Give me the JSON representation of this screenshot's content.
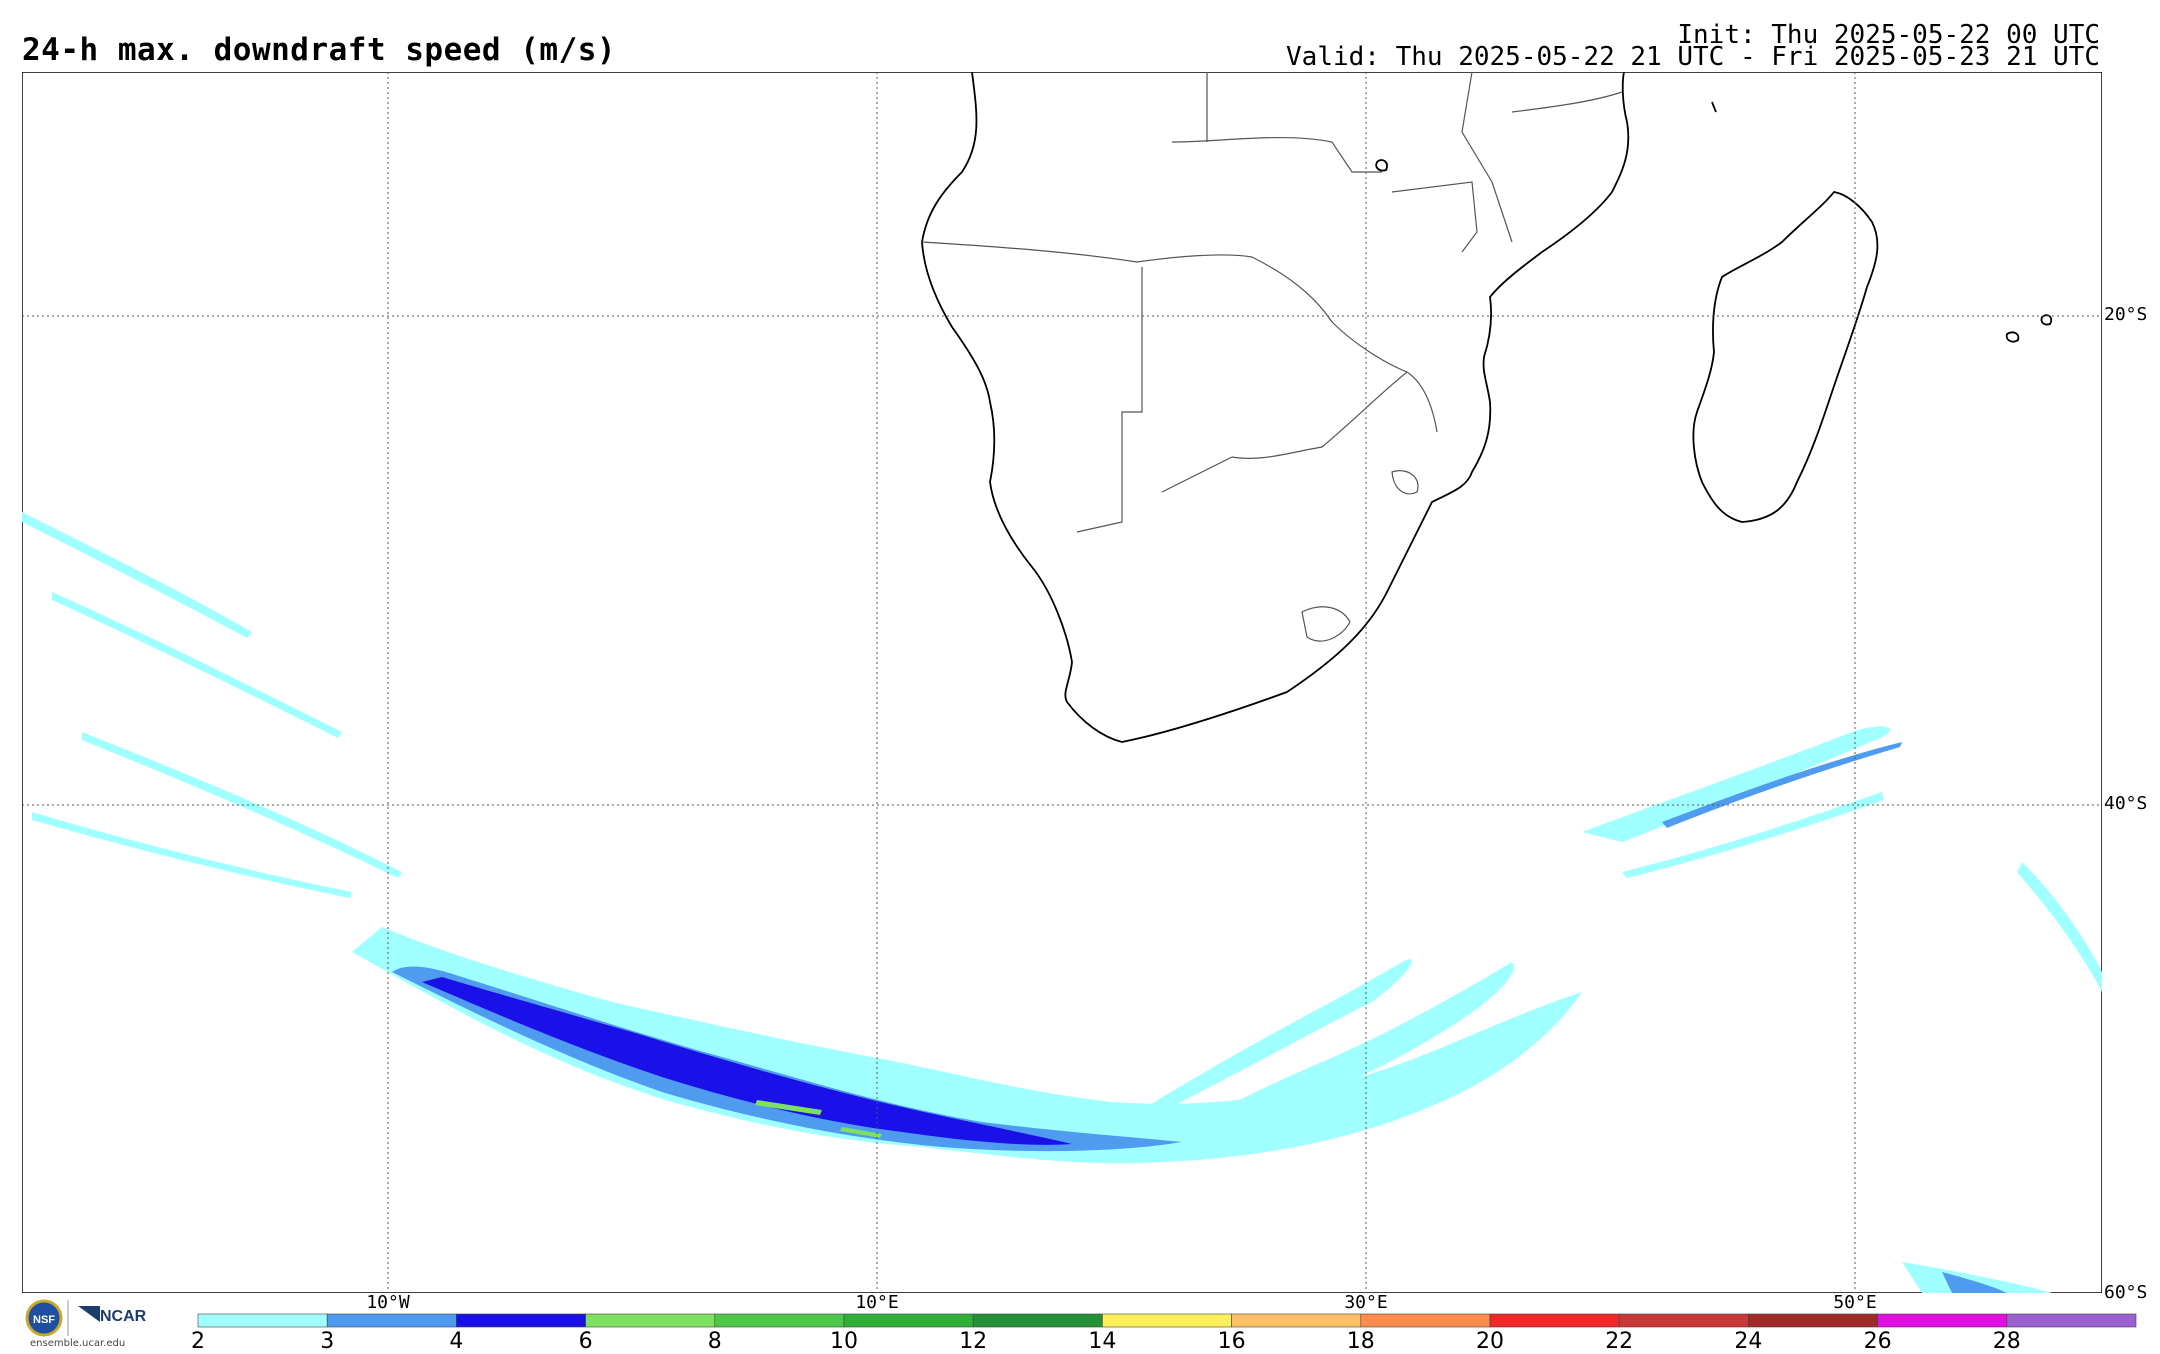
{
  "title": "24-h max. downdraft speed (m/s)",
  "init": "Init: Thu 2025-05-22 00 UTC",
  "valid": "Valid: Thu 2025-05-22 21 UTC - Fri 2025-05-23 21 UTC",
  "lat_labels": [
    "20°S",
    "40°S",
    "60°S"
  ],
  "lon_labels": [
    "10°W",
    "10°E",
    "30°E",
    "50°E"
  ],
  "map": {
    "lon_range": [
      -25,
      60
    ],
    "lat_range": [
      -10,
      -60
    ],
    "gridlines": "dotted",
    "features": [
      "coastlines",
      "country borders"
    ]
  },
  "colorbar": {
    "ticks": [
      "2",
      "3",
      "4",
      "6",
      "8",
      "10",
      "12",
      "14",
      "16",
      "18",
      "20",
      "22",
      "24",
      "26",
      "28"
    ],
    "colors": [
      "#a0ffff",
      "#4f9bf0",
      "#1a10e8",
      "#7ee060",
      "#4ec84a",
      "#2fae3a",
      "#23913a",
      "#fff05a",
      "#ffc068",
      "#ff8c4a",
      "#f02828",
      "#c83838",
      "#a02a2a",
      "#e010e0",
      "#9a60d0"
    ]
  },
  "logo": {
    "org": "NCAR",
    "site": "ensemble.ucar.edu"
  },
  "colors": {
    "light": "#a0ffff",
    "medium": "#4f9bf0",
    "dark": "#1a10e8",
    "green": "#7ee060"
  }
}
